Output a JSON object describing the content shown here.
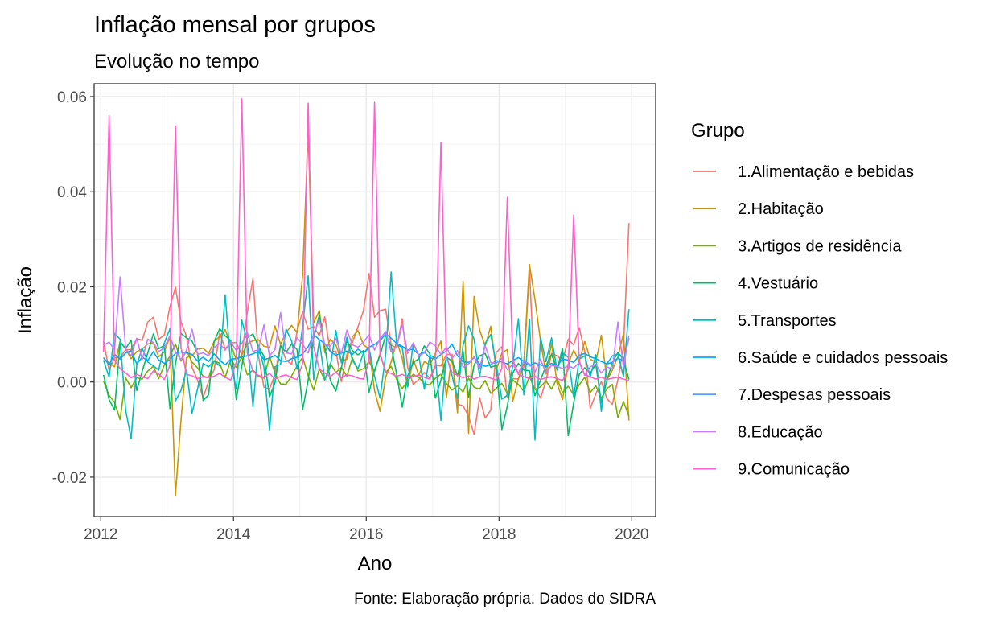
{
  "chart_data": {
    "type": "line",
    "title": "Inflação mensal por grupos",
    "subtitle": "Evolução no tempo",
    "xlabel": "Ano",
    "ylabel": "Inflação",
    "caption": "Fonte: Elaboração própria. Dados do SIDRA",
    "xlim": [
      2011.9,
      2020.36
    ],
    "ylim": [
      -0.0283,
      0.0627
    ],
    "x_ticks": [
      2012,
      2014,
      2016,
      2018,
      2020
    ],
    "x_tick_labels": [
      "2012",
      "2014",
      "2016",
      "2018",
      "2020"
    ],
    "y_ticks": [
      -0.02,
      0.0,
      0.02,
      0.04,
      0.06
    ],
    "y_tick_labels": [
      "-0.02",
      "0.00",
      "0.02",
      "0.04",
      "0.06"
    ],
    "grid": true,
    "legend": {
      "title": "Grupo",
      "position": "right"
    },
    "x": [
      2012.042,
      2012.125,
      2012.208,
      2012.292,
      2012.375,
      2012.458,
      2012.542,
      2012.625,
      2012.708,
      2012.792,
      2012.875,
      2012.958,
      2013.042,
      2013.125,
      2013.208,
      2013.292,
      2013.375,
      2013.458,
      2013.542,
      2013.625,
      2013.708,
      2013.792,
      2013.875,
      2013.958,
      2014.042,
      2014.125,
      2014.208,
      2014.292,
      2014.375,
      2014.458,
      2014.542,
      2014.625,
      2014.708,
      2014.792,
      2014.875,
      2014.958,
      2015.042,
      2015.125,
      2015.208,
      2015.292,
      2015.375,
      2015.458,
      2015.542,
      2015.625,
      2015.708,
      2015.792,
      2015.875,
      2015.958,
      2016.042,
      2016.125,
      2016.208,
      2016.292,
      2016.375,
      2016.458,
      2016.542,
      2016.625,
      2016.708,
      2016.792,
      2016.875,
      2016.958,
      2017.042,
      2017.125,
      2017.208,
      2017.292,
      2017.375,
      2017.458,
      2017.542,
      2017.625,
      2017.708,
      2017.792,
      2017.875,
      2017.958,
      2018.042,
      2018.125,
      2018.208,
      2018.292,
      2018.375,
      2018.458,
      2018.542,
      2018.625,
      2018.708,
      2018.792,
      2018.875,
      2018.958,
      2019.042,
      2019.125,
      2019.208,
      2019.292,
      2019.375,
      2019.458,
      2019.542,
      2019.625,
      2019.708,
      2019.792,
      2019.875,
      2019.958
    ],
    "series": [
      {
        "name": "1.Alimentação e bebidas",
        "color": "#F8766D",
        "values": [
          0.0086,
          0.0025,
          0.0051,
          0.0051,
          0.0068,
          0.0068,
          0.0091,
          0.0088,
          0.0126,
          0.0136,
          0.009,
          0.0099,
          0.0158,
          0.0199,
          0.0127,
          0.0096,
          0.0031,
          0.0004,
          -0.0033,
          0.0001,
          0.0026,
          0.0103,
          0.007,
          0.0082,
          0.0083,
          0.0056,
          0.0147,
          0.0217,
          0.0056,
          -0.0011,
          -0.0015,
          0.0016,
          0.0078,
          0.0046,
          0.0037,
          0.0107,
          0.0148,
          0.0111,
          0.0117,
          0.0097,
          0.0137,
          0.0063,
          0.0065,
          0.0001,
          0.0058,
          0.0083,
          0.0116,
          0.015,
          0.0228,
          0.0136,
          0.015,
          0.0153,
          0.0078,
          0.0071,
          0.0133,
          0.003,
          -0.0005,
          0.0005,
          0.002,
          0.0008,
          0.0035,
          0.0034,
          0.0058,
          0.0058,
          -0.0047,
          -0.005,
          -0.0072,
          -0.011,
          -0.0033,
          -0.0076,
          -0.0059,
          0.0062,
          0.0074,
          -0.0033,
          0.0007,
          0.0006,
          0.0032,
          0.0237,
          -0.0012,
          -0.0034,
          0.0002,
          0.006,
          0.0055,
          0.0044,
          0.009,
          0.0078,
          0.0114,
          0.0063,
          -0.0056,
          -0.0025,
          0.0001,
          -0.0035,
          -0.0047,
          0.0005,
          0.0072,
          0.0334
        ]
      },
      {
        "name": "2.Habitação",
        "color": "#CD9600",
        "values": [
          0.005,
          0.004,
          0.0032,
          0.0085,
          0.0069,
          0.0049,
          0.0064,
          0.0069,
          0.008,
          0.0082,
          0.0053,
          0.0063,
          0.0095,
          -0.0238,
          -0.0082,
          0.0051,
          0.0055,
          0.0069,
          0.0071,
          0.006,
          0.0085,
          0.0096,
          0.011,
          0.0079,
          0.0047,
          0.0057,
          0.008,
          0.0087,
          0.0089,
          0.0075,
          0.0073,
          0.0118,
          0.0079,
          0.0104,
          0.0119,
          0.0104,
          0.0224,
          0.0527,
          0.0124,
          0.015,
          0.0061,
          0.009,
          0.0078,
          0.0044,
          0.0048,
          0.0095,
          0.0108,
          0.0078,
          0.007,
          -0.0018,
          -0.0062,
          0.001,
          0.0042,
          0.0085,
          0.005,
          -0.001,
          0.0048,
          0.0014,
          0.0043,
          0.0036,
          0.006,
          0.0086,
          -0.0033,
          0.0056,
          -0.0065,
          0.0212,
          -0.0108,
          0.018,
          0.0109,
          0.0076,
          0.0117,
          0.0025,
          0.0061,
          0.0068,
          -0.004,
          0.0007,
          0.0042,
          0.0247,
          0.0173,
          0.0086,
          0.0017,
          0.0082,
          -0.0003,
          -0.0037,
          0.0038,
          0.0067,
          0.0043,
          0.0085,
          0.0048,
          0.0042,
          0.0098,
          0.0004,
          0.0025,
          0.0053,
          0.0102,
          -0.0081
        ]
      },
      {
        "name": "3.Artigos de residência",
        "color": "#7CAE00",
        "values": [
          0.0002,
          -0.0028,
          -0.0043,
          -0.0079,
          0.0009,
          -0.0012,
          0.0009,
          0.0006,
          0.0023,
          0.0033,
          0.0007,
          0.0036,
          0.0054,
          0.008,
          0.0044,
          0.0066,
          0.0042,
          0.003,
          0.0012,
          0.0009,
          0.0045,
          0.0039,
          0.0009,
          0.0047,
          0.0031,
          0.0052,
          0.0015,
          0.0025,
          0.0012,
          0.0008,
          0.0054,
          0.0018,
          -0.0004,
          -0.0005,
          0.0013,
          0.0034,
          0.0052,
          0.0013,
          -0.0017,
          0.0028,
          0.0004,
          0.0039,
          0.002,
          0.0031,
          0.0012,
          0.0051,
          0.0023,
          0.0028,
          0.0043,
          0.0022,
          0.0059,
          0.002,
          0.0033,
          0.0005,
          -0.0014,
          0.0003,
          0.0016,
          0.001,
          -0.0004,
          -0.0006,
          0.0008,
          0.0016,
          -0.0003,
          -0.0017,
          -0.0008,
          -0.0021,
          0.0008,
          -0.0011,
          -0.0015,
          0.0003,
          -0.0024,
          -0.0013,
          -0.0003,
          -0.0024,
          0.0004,
          -0.0005,
          -0.002,
          0.0012,
          -0.0016,
          -0.001,
          0.0002,
          -0.0015,
          0.0008,
          -0.0023,
          -0.0009,
          -0.0027,
          -0.0006,
          0.001,
          -0.0022,
          -0.0008,
          -0.0034,
          -0.0014,
          -0.0005,
          -0.0075,
          -0.0041,
          -0.0072
        ]
      },
      {
        "name": "4.Vestuário",
        "color": "#00BE67",
        "values": [
          0.0015,
          -0.0037,
          -0.0059,
          0.0085,
          0.007,
          0.0088,
          -0.0018,
          0.0023,
          0.0061,
          0.0101,
          0.007,
          0.0077,
          -0.0056,
          0.0038,
          0.0102,
          0.0093,
          0.0086,
          0.0061,
          -0.0039,
          -0.0027,
          0.0085,
          0.0112,
          0.0097,
          0.0087,
          -0.0037,
          0.0034,
          0.0093,
          0.0101,
          0.0075,
          0.0054,
          -0.0031,
          -0.0002,
          0.0076,
          0.0062,
          0.008,
          0.0068,
          -0.0058,
          0.0004,
          0.0092,
          0.0141,
          0.0074,
          0.0003,
          -0.0019,
          0.0029,
          0.0087,
          0.0066,
          0.0057,
          0.0066,
          -0.0022,
          0.0025,
          0.0056,
          0.0098,
          0.0076,
          0.0016,
          -0.0053,
          0.0013,
          0.0041,
          0.0049,
          0.0076,
          0.0059,
          -0.0034,
          0.0004,
          0.0052,
          0.0044,
          0.0013,
          0.0065,
          -0.0032,
          0.0036,
          0.0055,
          0.006,
          0.0031,
          0.0035,
          -0.01,
          -0.0051,
          0.0019,
          0.0039,
          0.0025,
          0.0024,
          -0.0029,
          0.0004,
          0.0034,
          0.0058,
          0.0026,
          0.0071,
          -0.0113,
          -0.0044,
          0.0016,
          0.003,
          0.0019,
          0.0037,
          -0.0044,
          0.0003,
          0.0041,
          0.0062,
          0.0047,
          0.0005
        ]
      },
      {
        "name": "5.Transportes",
        "color": "#00BFC4",
        "values": [
          0.0046,
          0.001,
          0.0102,
          0.009,
          -0.0059,
          -0.0119,
          0.0036,
          0.0071,
          0.0042,
          0.0034,
          0.0025,
          0.0082,
          0.0112,
          -0.004,
          -0.0018,
          0.0025,
          -0.0066,
          -0.0015,
          0.0039,
          0.0032,
          0.0044,
          0.0034,
          0.0183,
          0.0037,
          -0.0014,
          0.013,
          0.0085,
          -0.0052,
          0.0075,
          0.0031,
          -0.0101,
          0.0032,
          0.0037,
          0.0111,
          0.0086,
          0.0027,
          0.0118,
          0.0223,
          0.0005,
          0.0088,
          0.0004,
          0.0032,
          0.0108,
          0.004,
          0.0094,
          0.0045,
          0.0028,
          0.0061,
          0.0071,
          0.0012,
          -0.0034,
          0.0057,
          0.0231,
          0.0079,
          0.0072,
          -0.001,
          0.0082,
          0.0055,
          -0.0015,
          0.0056,
          0.0051,
          -0.0081,
          0.0057,
          0.0013,
          -0.0034,
          0.0077,
          0.0118,
          0.009,
          0.0012,
          0.0081,
          0.01,
          0.0037,
          -0.0036,
          -0.0028,
          0.0034,
          0.0133,
          -0.0027,
          0.0132,
          -0.0122,
          0.0093,
          0.0043,
          0.0093,
          0.0025,
          0.0061,
          0.0052,
          -0.0031,
          0.0048,
          0.0055,
          0.0011,
          0.0057,
          -0.0062,
          0.0038,
          0.0055,
          0.0059,
          0.0011,
          0.0153
        ]
      },
      {
        "name": "6.Saúde e cuidados pessoais",
        "color": "#00A9FF",
        "values": [
          0.0051,
          0.0036,
          0.0058,
          0.0048,
          0.0061,
          0.0066,
          0.0038,
          0.0052,
          0.0045,
          0.0064,
          0.0046,
          0.0039,
          0.0047,
          0.006,
          0.0063,
          0.0061,
          0.0058,
          0.0044,
          0.0052,
          0.0043,
          0.0059,
          0.0046,
          0.0036,
          0.0048,
          0.0049,
          0.0053,
          0.0055,
          0.0059,
          0.0064,
          0.0047,
          0.005,
          0.0056,
          0.0045,
          0.0043,
          0.0049,
          0.0052,
          0.0059,
          0.0074,
          0.01,
          0.0089,
          0.0081,
          0.0064,
          0.0056,
          0.0061,
          0.0065,
          0.0058,
          0.0069,
          0.0061,
          0.0073,
          0.0079,
          0.0087,
          0.0101,
          0.0092,
          0.0081,
          0.0075,
          0.0067,
          0.0069,
          0.0057,
          0.0063,
          0.0051,
          0.0048,
          0.0058,
          0.0065,
          0.008,
          0.0055,
          0.0043,
          0.0041,
          0.0051,
          0.0038,
          0.0033,
          0.0036,
          0.0045,
          0.0042,
          0.0038,
          0.0045,
          0.0051,
          0.0043,
          0.0034,
          0.004,
          0.0036,
          0.0032,
          0.0039,
          0.0034,
          0.0048,
          0.0046,
          0.0041,
          0.0056,
          0.006,
          0.0053,
          0.0049,
          0.0043,
          0.0038,
          0.0041,
          0.005,
          0.0044,
          0.0092
        ]
      },
      {
        "name": "7.Despesas pessoais",
        "color": "#C77CFF",
        "hidden_color_note": "",
        "values": [
          0.0077,
          0.0084,
          0.0068,
          0.0221,
          0.007,
          0.0055,
          0.0092,
          0.0047,
          0.009,
          0.0083,
          0.0064,
          0.0072,
          0.0097,
          0.0063,
          0.0047,
          0.0067,
          0.0111,
          0.0058,
          0.0061,
          0.0055,
          0.0072,
          0.0081,
          0.0067,
          0.0084,
          0.0066,
          0.0081,
          0.0104,
          0.0064,
          0.0068,
          0.012,
          0.0055,
          0.0068,
          0.0146,
          0.0061,
          0.0059,
          0.0093,
          0.0079,
          0.0061,
          0.0102,
          0.013,
          0.0078,
          0.0076,
          0.0091,
          0.0059,
          0.0109,
          0.0078,
          0.0073,
          0.0084,
          0.0099,
          0.0067,
          0.0091,
          0.0106,
          0.0063,
          0.0074,
          0.0121,
          0.006,
          0.0082,
          0.0055,
          0.0061,
          0.0084,
          0.0076,
          0.0058,
          0.0073,
          0.0049,
          0.0066,
          0.0031,
          0.0038,
          0.0053,
          0.0029,
          0.0076,
          0.0041,
          0.0039,
          0.005,
          0.0026,
          0.0037,
          0.0018,
          0.0044,
          0.0038,
          0.0021,
          0.0048,
          0.0019,
          0.0035,
          0.0033,
          0.0028,
          0.0034,
          0.0029,
          0.0041,
          0.0014,
          0.0032,
          0.0037,
          0.0019,
          0.0032,
          0.0027,
          0.0126,
          0.0031,
          0.0098
        ]
      },
      {
        "name": "8.Educação",
        "color": "#FF61CC",
        "values": [
          0.0062,
          0.056,
          0.0046,
          0.0028,
          0.0019,
          0.0009,
          0.0016,
          0.0011,
          0.0007,
          0.0023,
          0.0017,
          0.0005,
          0.0035,
          0.0538,
          0.0073,
          0.0016,
          0.0013,
          0.0007,
          0.0011,
          0.0009,
          0.0012,
          0.0018,
          0.001,
          0.0004,
          0.0042,
          0.0595,
          0.0061,
          0.0022,
          0.0014,
          0.0009,
          0.0018,
          0.0006,
          0.0012,
          0.0015,
          0.0009,
          0.0005,
          0.0039,
          0.0586,
          0.0074,
          0.0027,
          0.0019,
          0.0011,
          0.0021,
          0.0009,
          0.0015,
          0.0013,
          0.0008,
          0.0006,
          0.0044,
          0.0588,
          0.0059,
          0.0022,
          0.0018,
          0.0012,
          0.0016,
          0.001,
          0.0012,
          0.0015,
          0.001,
          0.0006,
          0.0032,
          0.0504,
          0.0052,
          0.002,
          0.0014,
          0.0009,
          0.0013,
          0.0006,
          0.0011,
          0.0012,
          0.0008,
          0.0004,
          0.0028,
          0.0388,
          0.0048,
          0.0016,
          0.0011,
          0.0007,
          0.0012,
          0.0005,
          0.0009,
          0.0011,
          0.0007,
          0.0003,
          0.0026,
          0.0351,
          0.0044,
          0.0015,
          0.0011,
          0.0006,
          0.001,
          0.0005,
          0.0008,
          0.001,
          0.0006,
          0.0003
        ]
      }
    ]
  }
}
